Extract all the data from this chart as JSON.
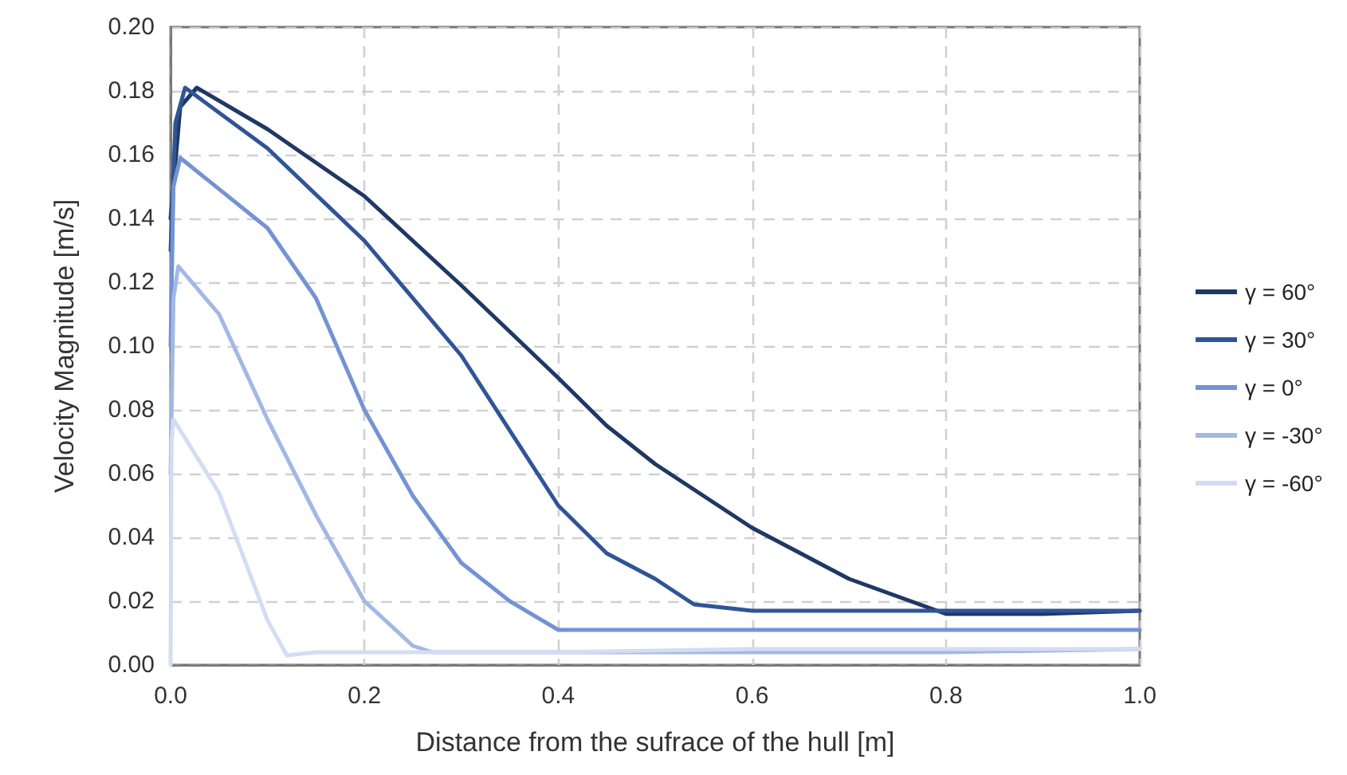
{
  "chart_data": {
    "type": "line",
    "xlabel": "Distance from the sufrace of the hull [m]",
    "ylabel": "Velocity Magnitude [m/s]",
    "xlim": [
      0,
      1
    ],
    "ylim": [
      0,
      0.2
    ],
    "xticks": [
      {
        "value": 0,
        "label": "0.0"
      },
      {
        "value": 0.2,
        "label": "0.2"
      },
      {
        "value": 0.4,
        "label": "0.4"
      },
      {
        "value": 0.6,
        "label": "0.6"
      },
      {
        "value": 0.8,
        "label": "0.8"
      },
      {
        "value": 1,
        "label": "1.0"
      }
    ],
    "yticks": [
      {
        "value": 0,
        "label": "0.00"
      },
      {
        "value": 0.02,
        "label": "0.02"
      },
      {
        "value": 0.04,
        "label": "0.04"
      },
      {
        "value": 0.06,
        "label": "0.06"
      },
      {
        "value": 0.08,
        "label": "0.08"
      },
      {
        "value": 0.1,
        "label": "0.10"
      },
      {
        "value": 0.12,
        "label": "0.12"
      },
      {
        "value": 0.14,
        "label": "0.14"
      },
      {
        "value": 0.16,
        "label": "0.16"
      },
      {
        "value": 0.18,
        "label": "0.18"
      },
      {
        "value": 0.2,
        "label": "0.20"
      }
    ],
    "grid": true,
    "legend": "right",
    "marker": "none",
    "line_style": "solid",
    "series": [
      {
        "name": "γ = 60°",
        "color": "#1f3864",
        "x": [
          0,
          0.01,
          0.027,
          0.1,
          0.2,
          0.3,
          0.4,
          0.45,
          0.5,
          0.6,
          0.7,
          0.8,
          0.9,
          1.0
        ],
        "values": [
          0.14,
          0.175,
          0.181,
          0.168,
          0.147,
          0.119,
          0.09,
          0.075,
          0.063,
          0.043,
          0.027,
          0.016,
          0.016,
          0.017
        ]
      },
      {
        "name": "γ = 30°",
        "color": "#2f5597",
        "x": [
          0,
          0.005,
          0.015,
          0.1,
          0.2,
          0.3,
          0.4,
          0.45,
          0.5,
          0.54,
          0.6,
          0.8,
          1.0
        ],
        "values": [
          0.13,
          0.17,
          0.181,
          0.162,
          0.133,
          0.097,
          0.05,
          0.035,
          0.027,
          0.019,
          0.017,
          0.017,
          0.017
        ]
      },
      {
        "name": "γ = 0°",
        "color": "#7393d3",
        "x": [
          0,
          0.003,
          0.01,
          0.1,
          0.15,
          0.2,
          0.25,
          0.3,
          0.35,
          0.4,
          0.6,
          0.8,
          1.0
        ],
        "values": [
          0.1,
          0.15,
          0.159,
          0.137,
          0.115,
          0.08,
          0.053,
          0.032,
          0.02,
          0.011,
          0.011,
          0.011,
          0.011
        ]
      },
      {
        "name": "γ = -30°",
        "color": "#a3b8e3",
        "x": [
          0,
          0.003,
          0.008,
          0.05,
          0.1,
          0.15,
          0.2,
          0.25,
          0.27,
          0.4,
          0.6,
          0.8,
          1.0
        ],
        "values": [
          0.06,
          0.115,
          0.125,
          0.11,
          0.077,
          0.047,
          0.02,
          0.006,
          0.004,
          0.004,
          0.004,
          0.004,
          0.005
        ]
      },
      {
        "name": "γ = -60°",
        "color": "#d3ddf2",
        "x": [
          0,
          0.001,
          0.003,
          0.05,
          0.1,
          0.12,
          0.15,
          0.4,
          0.6,
          0.8,
          1.0
        ],
        "values": [
          0.0,
          0.07,
          0.077,
          0.054,
          0.014,
          0.003,
          0.004,
          0.004,
          0.005,
          0.005,
          0.005
        ]
      }
    ]
  }
}
